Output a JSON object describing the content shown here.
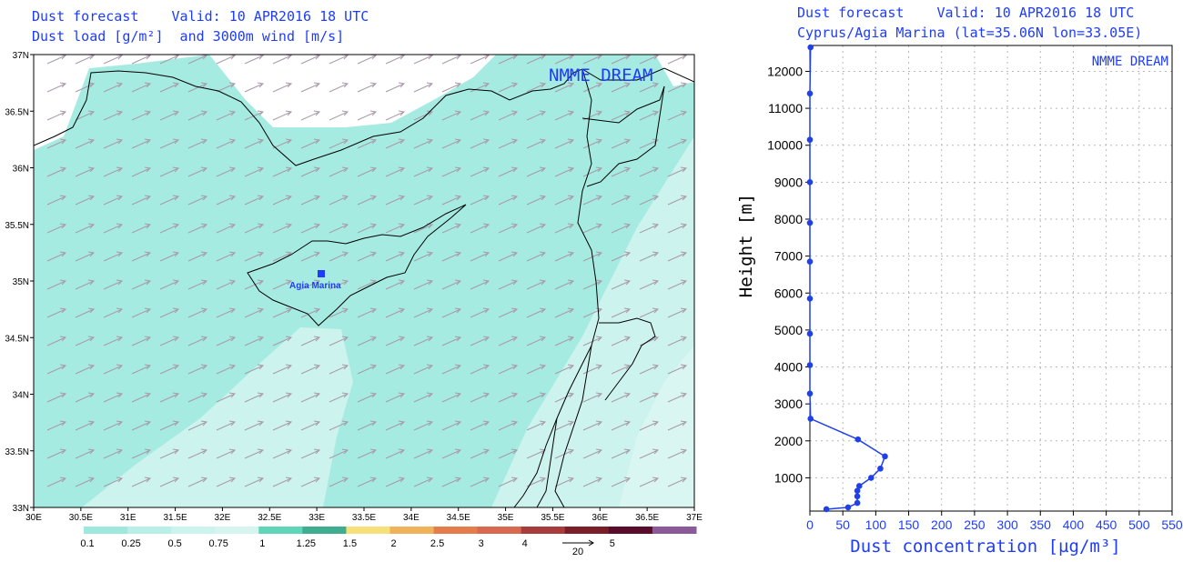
{
  "left_panel": {
    "title_line1": "Dust forecast    Valid: 10 APR2016 18 UTC",
    "title_line2": "Dust load [g/m²]  and 3000m wind [m/s]",
    "model_label": "NMME DREAM",
    "station_label": "Agia Marina",
    "lon_ticks": [
      "30E",
      "30.5E",
      "31E",
      "31.5E",
      "32E",
      "32.5E",
      "33E",
      "33.5E",
      "34E",
      "34.5E",
      "35E",
      "35.5E",
      "36E",
      "36.5E",
      "37E"
    ],
    "lat_ticks": [
      "37N",
      "36.5N",
      "36N",
      "35.5N",
      "35N",
      "34.5N",
      "34N",
      "33.5N",
      "33N"
    ],
    "legend": {
      "labels": [
        "0.1",
        "0.25",
        "0.5",
        "0.75",
        "1",
        "1.25",
        "1.5",
        "2",
        "2.5",
        "3",
        "4",
        "5"
      ],
      "colors": [
        "#9fe8dd",
        "#b8efe6",
        "#cdf3ee",
        "#d6f4f0",
        "#5fd6b8",
        "#3fae90",
        "#f5e07a",
        "#f0b35a",
        "#e47c4c",
        "#d8684e",
        "#a83c3c",
        "#7a1f2a",
        "#5a0c2c",
        "#8a5a9a"
      ],
      "wind_ref": "20"
    },
    "colors": {
      "light_teal": "#a6ebe1",
      "pale_teal": "#cdf3ee",
      "white": "#ffffff",
      "arrow": "#a89aa8"
    }
  },
  "right_panel": {
    "title_line1": "Dust forecast    Valid: 10 APR2016 18 UTC",
    "title_line2": "Cyprus/Agia Marina (lat=35.06N lon=33.05E)",
    "model_label": "NMME DREAM",
    "chart_data": {
      "type": "line",
      "xlabel": "Dust concentration [µg/m³]",
      "ylabel": "Height [m]",
      "xlim": [
        0,
        550
      ],
      "ylim": [
        100,
        12700
      ],
      "x_ticks": [
        0,
        50,
        100,
        150,
        200,
        250,
        300,
        350,
        400,
        450,
        500,
        550
      ],
      "y_ticks": [
        1000,
        2000,
        3000,
        4000,
        5000,
        6000,
        7000,
        8000,
        9000,
        10000,
        11000,
        12000
      ],
      "grid": true,
      "series": [
        {
          "color": "#2040e8",
          "points": [
            {
              "x": 25,
              "y": 150
            },
            {
              "x": 58,
              "y": 200
            },
            {
              "x": 72,
              "y": 320
            },
            {
              "x": 72,
              "y": 500
            },
            {
              "x": 72,
              "y": 650
            },
            {
              "x": 75,
              "y": 780
            },
            {
              "x": 93,
              "y": 1000
            },
            {
              "x": 107,
              "y": 1250
            },
            {
              "x": 114,
              "y": 1580
            },
            {
              "x": 73,
              "y": 2040
            },
            {
              "x": 1,
              "y": 2600
            },
            {
              "x": 0,
              "y": 3280
            },
            {
              "x": 0,
              "y": 4050
            },
            {
              "x": 0,
              "y": 4900
            },
            {
              "x": 0,
              "y": 5850
            },
            {
              "x": 0,
              "y": 6850
            },
            {
              "x": 0,
              "y": 7900
            },
            {
              "x": 0,
              "y": 9000
            },
            {
              "x": 0,
              "y": 10150
            },
            {
              "x": 0,
              "y": 11400
            },
            {
              "x": 1,
              "y": 12650
            }
          ]
        }
      ]
    }
  }
}
